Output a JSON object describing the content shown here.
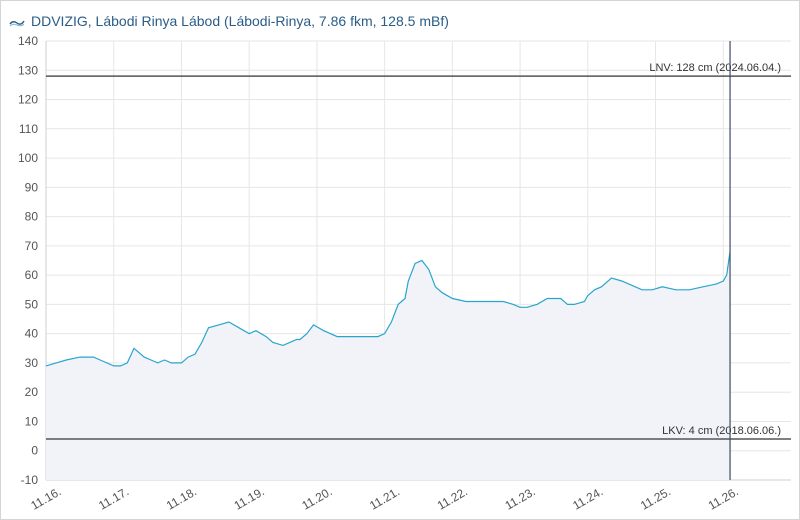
{
  "header": {
    "logo_icon": "ddvizig-logo-icon",
    "title": "DDVIZIG, Lábodi Rinya Lábod (Lábodi-Rinya, 7.86 fkm, 128.5 mBf)"
  },
  "colors": {
    "line": "#29a5cc",
    "area_fill": "#f1f3f8",
    "grid": "#e6e6e6",
    "reference_line": "#555555",
    "title": "#2b5d87"
  },
  "chart_data": {
    "type": "area",
    "title": "",
    "xlabel": "",
    "ylabel": "",
    "ylim": [
      -10,
      140
    ],
    "y_ticks": [
      -10,
      0,
      10,
      20,
      30,
      40,
      50,
      60,
      70,
      80,
      90,
      100,
      110,
      120,
      130,
      140
    ],
    "x_ticks": [
      "11.16.",
      "11.17.",
      "11.18.",
      "11.19.",
      "11.20.",
      "11.21.",
      "11.22.",
      "11.23.",
      "11.24.",
      "11.25.",
      "11.26."
    ],
    "xlim_days": [
      16,
      27.0
    ],
    "grid": true,
    "series": [
      {
        "x": [
          16.0,
          16.15,
          16.3,
          16.5,
          16.7,
          16.8,
          17.0,
          17.1,
          17.2,
          17.3,
          17.45,
          17.55,
          17.65,
          17.75,
          17.85,
          18.0,
          18.1,
          18.2,
          18.3,
          18.4,
          18.55,
          18.7,
          18.85,
          19.0,
          19.1,
          19.25,
          19.35,
          19.5,
          19.6,
          19.7,
          19.75,
          19.85,
          19.95,
          20.1,
          20.3,
          20.5,
          20.75,
          20.9,
          21.0,
          21.1,
          21.2,
          21.3,
          21.35,
          21.45,
          21.55,
          21.65,
          21.75,
          21.85,
          22.0,
          22.2,
          22.4,
          22.6,
          22.75,
          22.9,
          23.0,
          23.1,
          23.25,
          23.4,
          23.5,
          23.6,
          23.7,
          23.8,
          23.95,
          24.0,
          24.1,
          24.2,
          24.35,
          24.5,
          24.7,
          24.8,
          24.95,
          25.1,
          25.3,
          25.5,
          25.7,
          25.9,
          26.0,
          26.05,
          26.1
        ],
        "values": [
          29,
          30,
          31,
          32,
          32,
          31,
          29,
          29,
          30,
          35,
          32,
          31,
          30,
          31,
          30,
          30,
          32,
          33,
          37,
          42,
          43,
          44,
          42,
          40,
          41,
          39,
          37,
          36,
          37,
          38,
          38,
          40,
          43,
          41,
          39,
          39,
          39,
          39,
          40,
          44,
          50,
          52,
          58,
          64,
          65,
          62,
          56,
          54,
          52,
          51,
          51,
          51,
          51,
          50,
          49,
          49,
          50,
          52,
          52,
          52,
          50,
          50,
          51,
          53,
          55,
          56,
          59,
          58,
          56,
          55,
          55,
          56,
          55,
          55,
          56,
          57,
          58,
          60,
          68
        ]
      }
    ],
    "reference_lines": [
      {
        "value": 128,
        "label": "LNV: 128 cm (2024.06.04.)"
      },
      {
        "value": 4,
        "label": "LKV: 4 cm (2018.06.06.)"
      }
    ],
    "current_time_marker": 26.1
  }
}
